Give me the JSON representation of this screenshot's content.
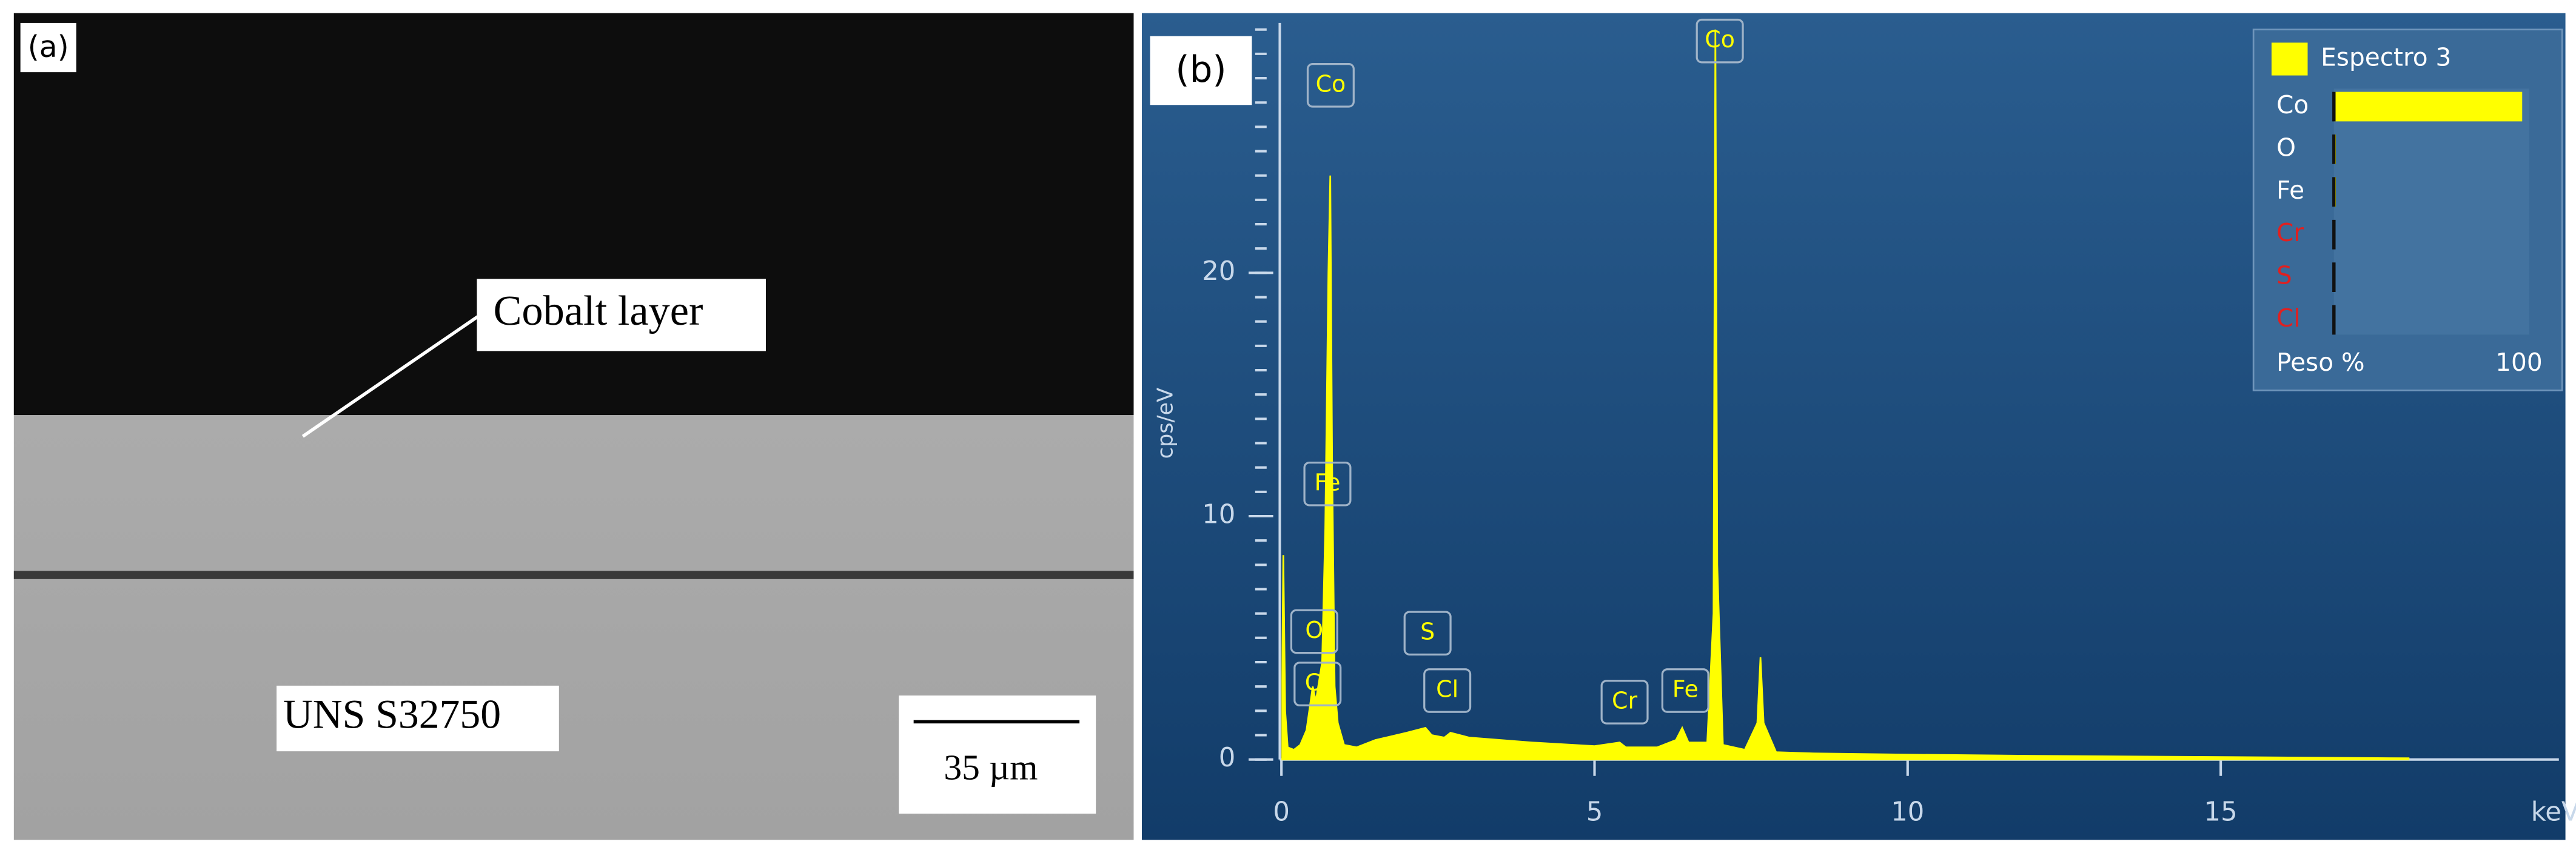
{
  "panel_a": {
    "label": "(a)",
    "annotation": "Cobalt layer",
    "substrate": "UNS S32750",
    "scale_bar": "35 µm"
  },
  "panel_b_label": "(b)",
  "chart_data": {
    "type": "area",
    "ylabel": "cps/eV",
    "xlabel": "keV",
    "color": "#ffff00",
    "x": [
      0,
      0.03,
      0.06,
      0.1,
      0.2,
      0.3,
      0.4,
      0.5,
      0.55,
      0.6,
      0.65,
      0.7,
      0.75,
      0.78,
      0.81,
      0.85,
      0.9,
      1.0,
      1.2,
      1.5,
      2.0,
      2.3,
      2.4,
      2.6,
      2.7,
      3.0,
      4.0,
      5.0,
      5.4,
      5.5,
      6.0,
      6.3,
      6.4,
      6.5,
      6.8,
      6.9,
      6.93,
      6.96,
      7.05,
      7.4,
      7.6,
      7.65,
      7.7,
      7.9,
      8.5,
      10,
      12,
      15,
      18
    ],
    "values": [
      0,
      8.4,
      2,
      0.5,
      0.4,
      0.6,
      1.2,
      3.0,
      2.4,
      3.2,
      4,
      9.5,
      20,
      24,
      12,
      3,
      1.5,
      0.6,
      0.5,
      0.8,
      1.1,
      1.3,
      1.0,
      0.9,
      1.1,
      0.9,
      0.7,
      0.55,
      0.7,
      0.5,
      0.5,
      0.8,
      1.3,
      0.7,
      0.7,
      6,
      30,
      8,
      0.6,
      0.4,
      1.5,
      4.2,
      1.5,
      0.3,
      0.25,
      0.2,
      0.15,
      0.1,
      0.05
    ],
    "xlim": [
      0,
      20.4
    ],
    "ylim": [
      0,
      30
    ],
    "xticks": [
      0,
      5,
      10,
      15
    ],
    "yticks": [
      0,
      10,
      20
    ],
    "peak_labels": [
      "Co",
      "Fe",
      "O",
      "Cr",
      "S",
      "Cl",
      "Cr",
      "Fe",
      "Co"
    ],
    "inset": {
      "title": "Espectro 3",
      "categories": [
        "Co",
        "O",
        "Fe",
        "Cr",
        "S",
        "Cl"
      ],
      "label_colors": [
        "#ffffff",
        "#ffffff",
        "#ffffff",
        "#e02020",
        "#e02020",
        "#e02020"
      ],
      "values": [
        98,
        1,
        1,
        0,
        0,
        0
      ],
      "xlim": [
        0,
        100
      ],
      "xlabel": "Peso %",
      "xticks": [
        100
      ],
      "color": "#ffff00"
    }
  }
}
